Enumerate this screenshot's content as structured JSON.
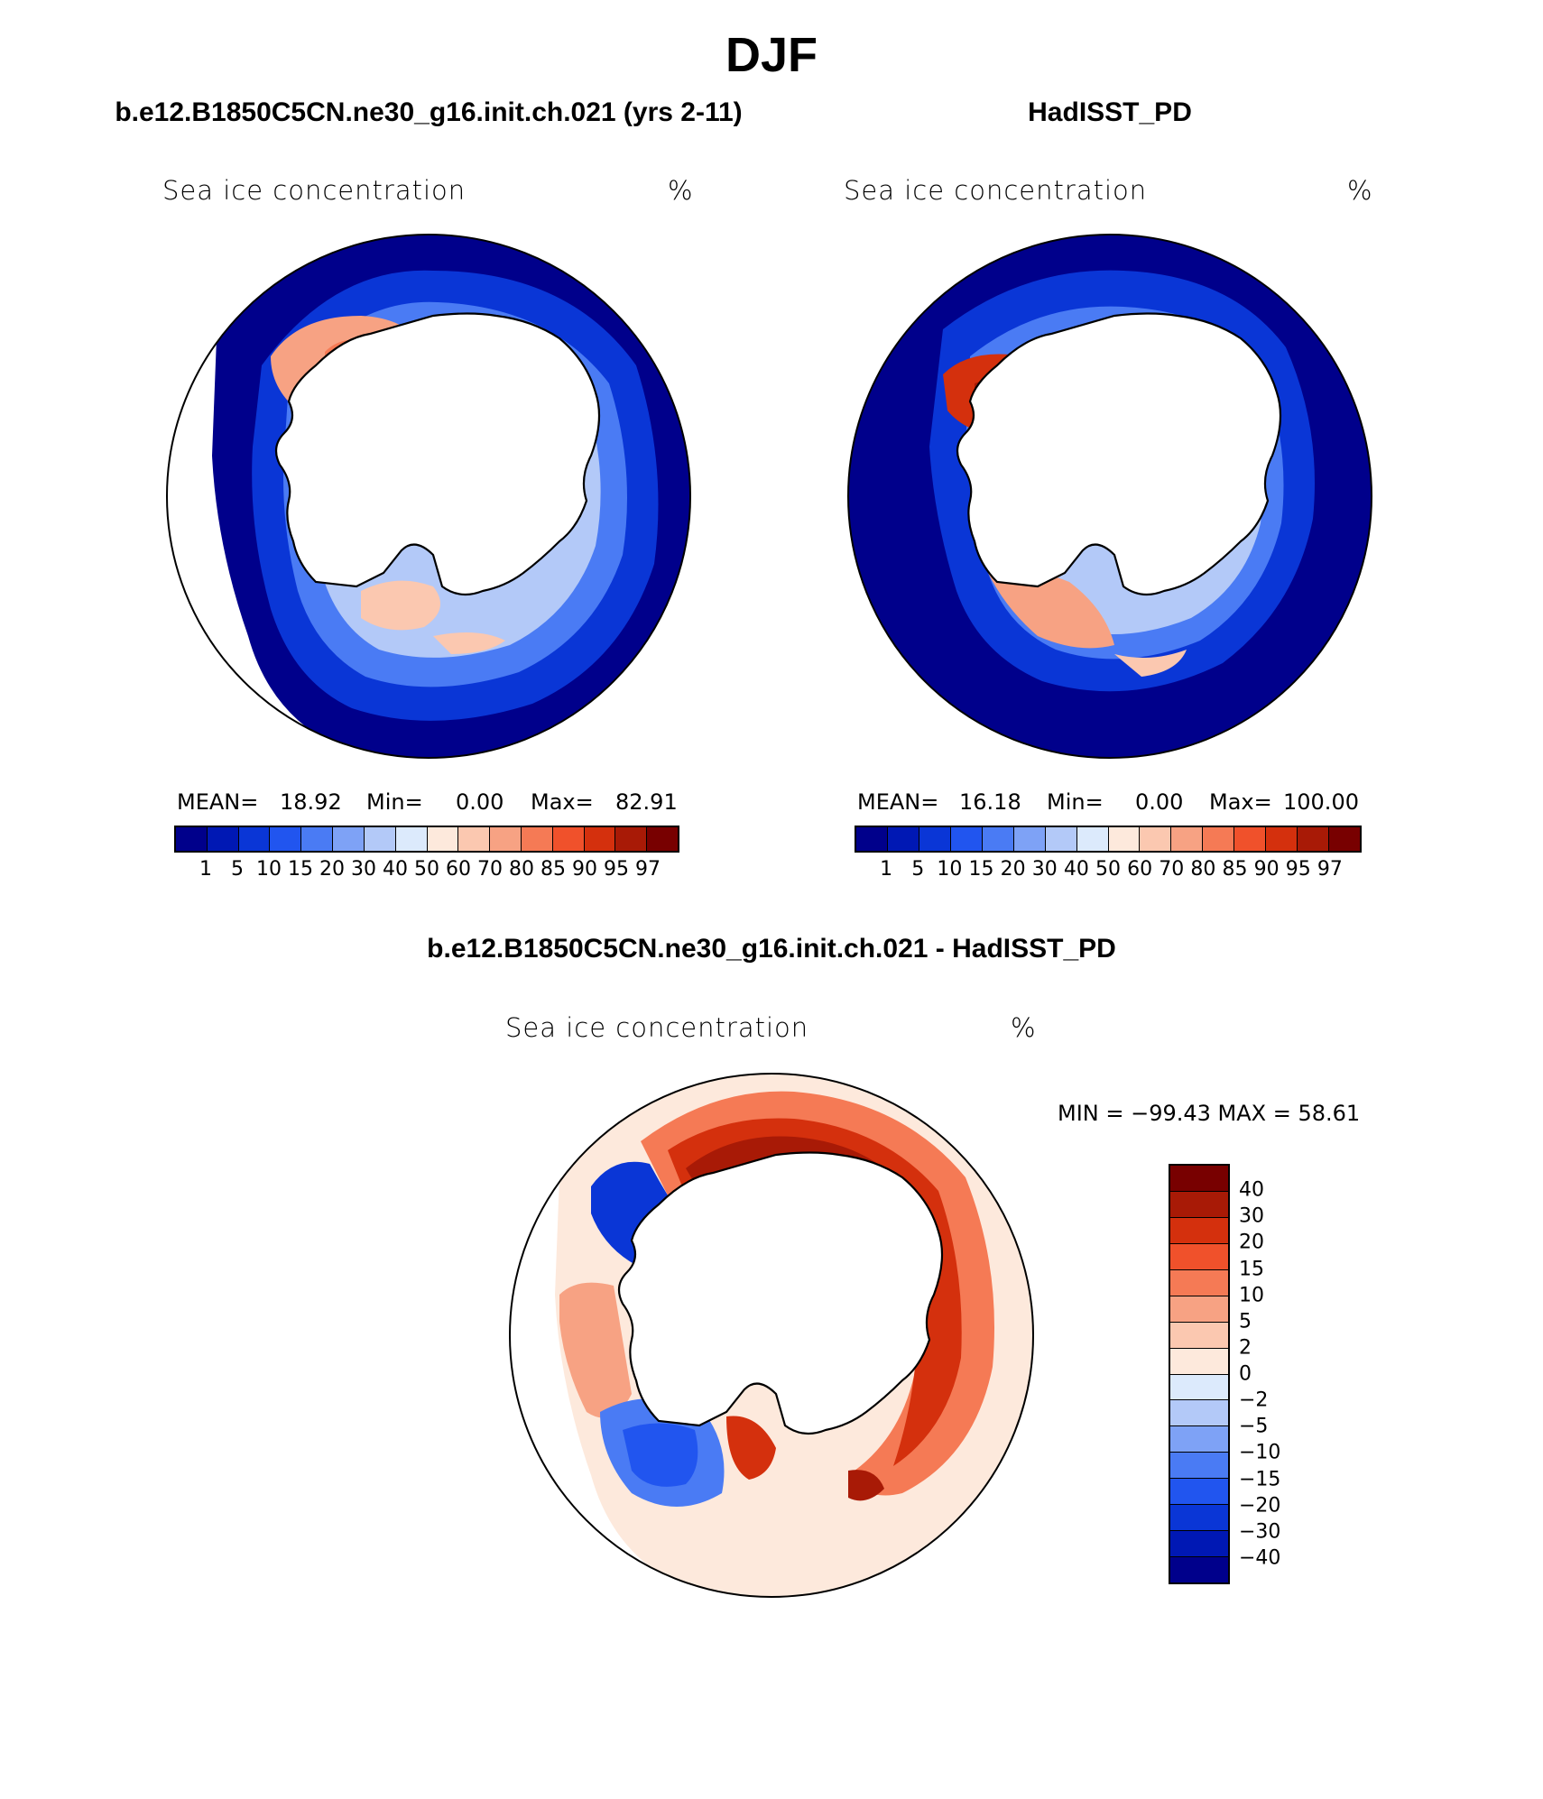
{
  "title": "DJF",
  "panels": [
    {
      "title": "b.e12.B1850C5CN.ne30_g16.init.ch.021 (yrs 2-11)",
      "variable": "Sea ice concentration",
      "units": "%",
      "stats": {
        "mean_label": "MEAN=",
        "mean": "18.92",
        "min_label": "Min=",
        "min": "0.00",
        "max_label": "Max=",
        "max": "82.91"
      }
    },
    {
      "title": "HadISST_PD",
      "variable": "Sea ice concentration",
      "units": "%",
      "stats": {
        "mean_label": "MEAN=",
        "mean": "16.18",
        "min_label": "Min=",
        "min": "0.00",
        "max_label": "Max=",
        "max": "100.00"
      }
    },
    {
      "title": "b.e12.B1850C5CN.ne30_g16.init.ch.021 - HadISST_PD",
      "variable": "Sea ice concentration",
      "units": "%",
      "stats_text": "MIN = −99.43 MAX =   58.61"
    }
  ],
  "colorbar_abs": {
    "colors": [
      "#00008b",
      "#0018b4",
      "#0a36d6",
      "#2155ef",
      "#4a7bf4",
      "#7ea2f6",
      "#b3c9f8",
      "#dceafc",
      "#fde9dc",
      "#fbc8b0",
      "#f7a283",
      "#f57a55",
      "#f0512b",
      "#d4300d",
      "#a81a06",
      "#780000"
    ],
    "ticks": [
      "1",
      "5",
      "10",
      "15",
      "20",
      "30",
      "40",
      "50",
      "60",
      "70",
      "80",
      "85",
      "90",
      "95",
      "97"
    ]
  },
  "colorbar_diff": {
    "colors": [
      "#780000",
      "#a81a06",
      "#d4300d",
      "#f0512b",
      "#f57a55",
      "#f7a283",
      "#fbc8b0",
      "#fde9dc",
      "#dceafc",
      "#b3c9f8",
      "#7ea2f6",
      "#4a7bf4",
      "#2155ef",
      "#0a36d6",
      "#0018b4",
      "#00008b"
    ],
    "ticks": [
      "40",
      "30",
      "20",
      "15",
      "10",
      "5",
      "2",
      "0",
      "−2",
      "−5",
      "−10",
      "−15",
      "−20",
      "−30",
      "−40"
    ]
  }
}
